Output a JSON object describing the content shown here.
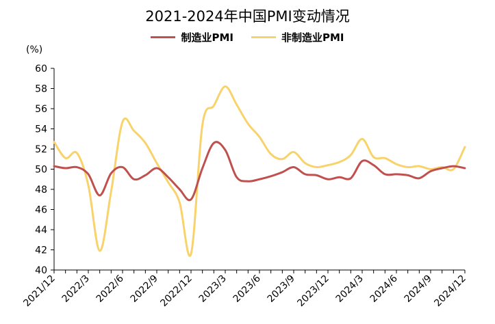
{
  "chart_data": {
    "type": "line",
    "title": "2021-2024年中国PMI变动情况",
    "ylabel": "(%)",
    "xlabel": "",
    "ylim": [
      40,
      60
    ],
    "yticks": [
      40,
      42,
      44,
      46,
      48,
      50,
      52,
      54,
      56,
      58,
      60
    ],
    "x": [
      "2021/12",
      "2022/1",
      "2022/2",
      "2022/3",
      "2022/4",
      "2022/5",
      "2022/6",
      "2022/7",
      "2022/8",
      "2022/9",
      "2022/10",
      "2022/11",
      "2022/12",
      "2023/1",
      "2023/2",
      "2023/3",
      "2023/4",
      "2023/5",
      "2023/6",
      "2023/7",
      "2023/8",
      "2023/9",
      "2023/10",
      "2023/11",
      "2023/12",
      "2024/1",
      "2024/2",
      "2024/3",
      "2024/4",
      "2024/5",
      "2024/6",
      "2024/7",
      "2024/8",
      "2024/9",
      "2024/10",
      "2024/11",
      "2024/12"
    ],
    "xtick_labels": [
      "2021/12",
      "2022/3",
      "2022/6",
      "2022/9",
      "2022/12",
      "2023/3",
      "2023/6",
      "2023/9",
      "2023/12",
      "2024/3",
      "2024/6",
      "2024/9",
      "2024/12"
    ],
    "grid": false,
    "legend_position": "top-center",
    "series": [
      {
        "name": "制造业PMI",
        "color": "#C0504D",
        "values": [
          50.3,
          50.1,
          50.2,
          49.5,
          47.4,
          49.6,
          50.2,
          49.0,
          49.4,
          50.1,
          49.2,
          48.0,
          47.0,
          50.1,
          52.6,
          51.9,
          49.2,
          48.8,
          49.0,
          49.3,
          49.7,
          50.2,
          49.5,
          49.4,
          49.0,
          49.2,
          49.1,
          50.8,
          50.4,
          49.5,
          49.5,
          49.4,
          49.1,
          49.8,
          50.1,
          50.3,
          50.1
        ]
      },
      {
        "name": "非制造业PMI",
        "color": "#F8D26A",
        "values": [
          52.7,
          51.1,
          51.6,
          48.4,
          41.9,
          47.8,
          54.7,
          53.8,
          52.6,
          50.6,
          48.7,
          46.7,
          41.6,
          54.4,
          56.3,
          58.2,
          56.4,
          54.5,
          53.2,
          51.5,
          51.0,
          51.7,
          50.6,
          50.2,
          50.4,
          50.7,
          51.4,
          53.0,
          51.2,
          51.1,
          50.5,
          50.2,
          50.3,
          50.0,
          50.2,
          50.0,
          52.2
        ]
      }
    ]
  }
}
